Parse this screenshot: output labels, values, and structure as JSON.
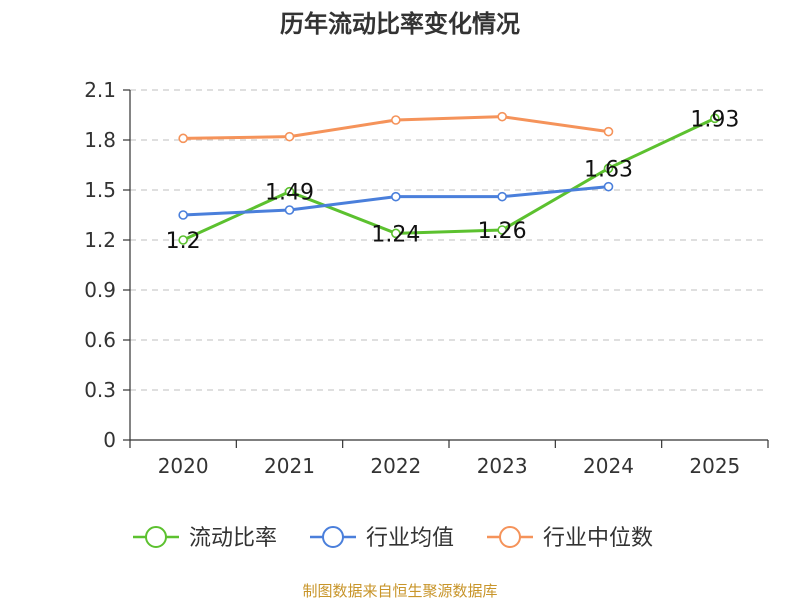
{
  "chart_data": {
    "type": "line",
    "title": "历年流动比率变化情况",
    "categories": [
      "2020",
      "2021",
      "2022",
      "2023",
      "2024",
      "2025"
    ],
    "ylim": [
      0,
      2.1
    ],
    "yticks": [
      "0",
      "0.3",
      "0.6",
      "0.9",
      "1.2",
      "1.5",
      "1.8",
      "2.1"
    ],
    "grid": true,
    "legend_position": "bottom",
    "series": [
      {
        "name": "流动比率",
        "color": "#5cc12f",
        "values": [
          1.2,
          1.49,
          1.24,
          1.26,
          1.63,
          1.93
        ],
        "labels": [
          "1.2",
          "1.49",
          "1.24",
          "1.26",
          "1.63",
          "1.93"
        ]
      },
      {
        "name": "行业均值",
        "color": "#4a7fdb",
        "values": [
          1.35,
          1.38,
          1.46,
          1.46,
          1.52,
          null
        ]
      },
      {
        "name": "行业中位数",
        "color": "#f5935a",
        "values": [
          1.81,
          1.82,
          1.92,
          1.94,
          1.85,
          null
        ]
      }
    ]
  },
  "footer": {
    "source": "制图数据来自恒生聚源数据库"
  }
}
